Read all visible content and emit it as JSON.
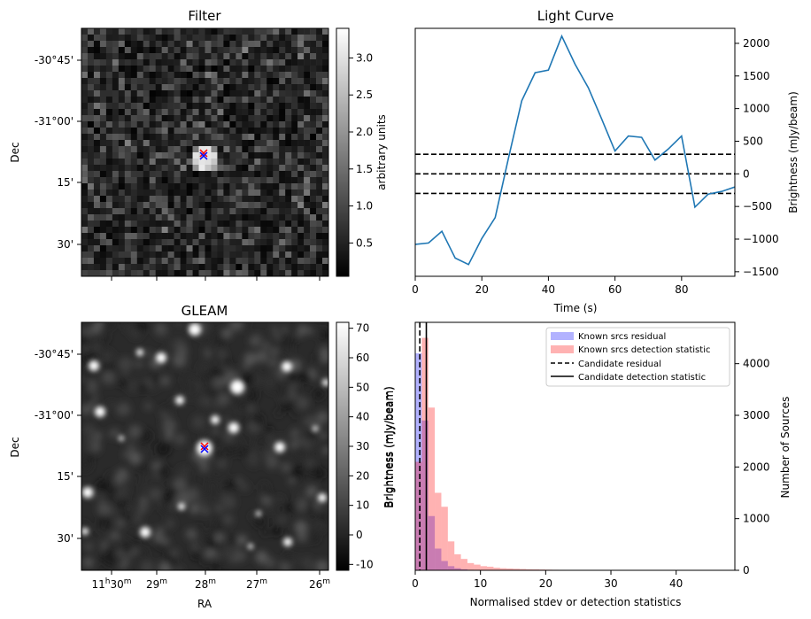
{
  "chart_data": [
    {
      "type": "heatmap",
      "title": "Filter",
      "ylabel": "Dec",
      "yticks": [
        "-30°45'",
        "-31°00'",
        "15'",
        "30'"
      ],
      "colorbar": {
        "label": "arbitrary units",
        "ticks": [
          0.5,
          1.0,
          1.5,
          2.0,
          2.5,
          3.0
        ],
        "range": [
          0.05,
          3.4
        ]
      },
      "markers": [
        "x",
        "x"
      ],
      "colors": {
        "marker_red": "#ff0000",
        "marker_blue": "#0000ff"
      }
    },
    {
      "type": "line",
      "title": "Light Curve",
      "xlabel": "Time (s)",
      "ylabel": "Brightness (mJy/beam)",
      "xlim": [
        0,
        96
      ],
      "ylim": [
        -1570,
        2230
      ],
      "xticks": [
        0,
        20,
        40,
        60,
        80
      ],
      "yticks": [
        -1500,
        -1000,
        -500,
        0,
        500,
        1000,
        1500,
        2000
      ],
      "x": [
        0,
        4,
        8,
        12,
        16,
        20,
        24,
        28,
        32,
        36,
        40,
        44,
        48,
        52,
        56,
        60,
        64,
        68,
        72,
        76,
        80,
        84,
        88,
        92,
        96
      ],
      "y": [
        -1080,
        -1060,
        -880,
        -1290,
        -1390,
        -990,
        -670,
        240,
        1120,
        1550,
        1590,
        2110,
        1680,
        1320,
        840,
        350,
        580,
        560,
        210,
        380,
        580,
        -510,
        -310,
        -270,
        -200
      ],
      "hlines": [
        300,
        0,
        -300
      ],
      "colors": {
        "line": "#1f77b4"
      }
    },
    {
      "type": "heatmap",
      "title": "GLEAM",
      "xlabel": "RA",
      "ylabel": "Dec",
      "xticks": [
        "11h30m",
        "29m",
        "28m",
        "27m",
        "26m"
      ],
      "yticks": [
        "-30°45'",
        "-31°00'",
        "15'",
        "30'"
      ],
      "colorbar": {
        "label": "Brightness (mJy/beam)",
        "ticks": [
          -10,
          0,
          10,
          20,
          30,
          40,
          50,
          60,
          70
        ],
        "range": [
          -12,
          72
        ]
      },
      "markers": [
        "x",
        "x"
      ],
      "colors": {
        "marker_red": "#ff0000",
        "marker_blue": "#0000ff"
      }
    },
    {
      "type": "bar",
      "xlabel": "Normalised stdev or detection statistics",
      "ylabel": "Number of Sources",
      "ylabel_left": "Brightness (mJy/beam)",
      "xlim": [
        0,
        49
      ],
      "ylim": [
        0,
        4800
      ],
      "xticks": [
        0,
        10,
        20,
        30,
        40
      ],
      "yticks": [
        0,
        1000,
        2000,
        3000,
        4000
      ],
      "bin_width": 1,
      "series": [
        {
          "name": "Known srcs residual",
          "values": [
            4200,
            2900,
            1050,
            420,
            180,
            80,
            40,
            20,
            10,
            5,
            3,
            2,
            1,
            1,
            0,
            0,
            0,
            0,
            0,
            0
          ]
        },
        {
          "name": "Known srcs detection statistic",
          "values": [
            2100,
            4500,
            3150,
            1500,
            1230,
            560,
            310,
            220,
            140,
            110,
            80,
            70,
            50,
            40,
            35,
            30,
            25,
            20,
            18,
            15,
            12,
            10,
            9,
            8,
            7,
            6,
            5,
            5,
            4,
            4,
            3,
            3,
            3,
            2,
            2,
            2,
            2,
            2,
            1,
            1,
            1,
            1,
            1,
            1,
            1,
            1,
            1,
            1,
            1
          ]
        }
      ],
      "vlines": [
        {
          "name": "Candidate residual",
          "x": 0.7,
          "style": "dashed"
        },
        {
          "name": "Candidate detection statistic",
          "x": 1.7,
          "style": "solid"
        }
      ],
      "legend": "top-right",
      "colors": {
        "residual": "#0000ff",
        "detection": "#ff0000"
      }
    }
  ]
}
